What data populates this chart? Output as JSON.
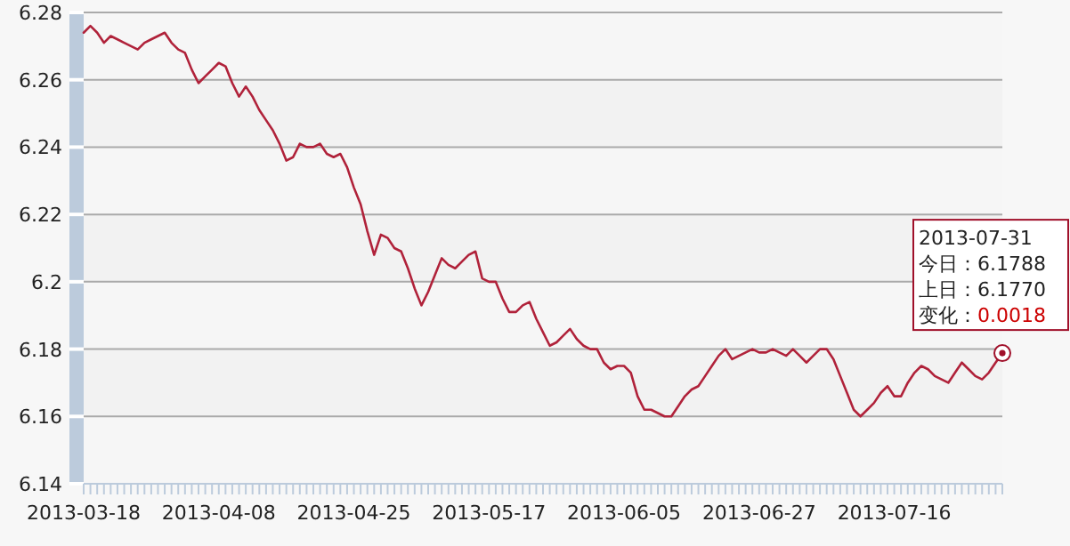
{
  "chart_data": {
    "type": "line",
    "categories": [
      "2013-03-18",
      null,
      null,
      null,
      null,
      null,
      null,
      null,
      null,
      null,
      null,
      null,
      null,
      null,
      null,
      null,
      null,
      null,
      null,
      null,
      "2013-04-08",
      null,
      null,
      null,
      null,
      null,
      null,
      null,
      null,
      null,
      null,
      null,
      null,
      null,
      null,
      null,
      null,
      null,
      null,
      null,
      "2013-04-25",
      null,
      null,
      null,
      null,
      null,
      null,
      null,
      null,
      null,
      null,
      null,
      null,
      null,
      null,
      null,
      null,
      null,
      null,
      null,
      "2013-05-17",
      null,
      null,
      null,
      null,
      null,
      null,
      null,
      null,
      null,
      null,
      null,
      null,
      null,
      null,
      null,
      null,
      null,
      null,
      null,
      "2013-06-05",
      null,
      null,
      null,
      null,
      null,
      null,
      null,
      null,
      null,
      null,
      null,
      null,
      null,
      null,
      null,
      null,
      null,
      null,
      null,
      "2013-06-27",
      null,
      null,
      null,
      null,
      null,
      null,
      null,
      null,
      null,
      null,
      null,
      null,
      null,
      null,
      null,
      null,
      null,
      null,
      null,
      "2013-07-16",
      null,
      null,
      null,
      null,
      null,
      null,
      null,
      null,
      null,
      null,
      null,
      null,
      null,
      null,
      null,
      null
    ],
    "series": [
      {
        "color": "#b0223a",
        "values": [
          6.274,
          6.276,
          6.274,
          6.271,
          6.273,
          6.272,
          6.271,
          6.27,
          6.269,
          6.271,
          6.272,
          6.273,
          6.274,
          6.271,
          6.269,
          6.268,
          6.263,
          6.259,
          6.261,
          6.263,
          6.265,
          6.264,
          6.259,
          6.255,
          6.258,
          6.255,
          6.251,
          6.248,
          6.245,
          6.241,
          6.236,
          6.237,
          6.241,
          6.24,
          6.24,
          6.241,
          6.238,
          6.237,
          6.238,
          6.234,
          6.228,
          6.223,
          6.215,
          6.208,
          6.214,
          6.213,
          6.21,
          6.209,
          6.204,
          6.198,
          6.193,
          6.197,
          6.202,
          6.207,
          6.205,
          6.204,
          6.206,
          6.208,
          6.209,
          6.201,
          6.2,
          6.2,
          6.195,
          6.191,
          6.191,
          6.193,
          6.194,
          6.189,
          6.185,
          6.181,
          6.182,
          6.184,
          6.186,
          6.183,
          6.181,
          6.18,
          6.18,
          6.176,
          6.174,
          6.175,
          6.175,
          6.173,
          6.166,
          6.162,
          6.162,
          6.161,
          6.16,
          6.16,
          6.163,
          6.166,
          6.168,
          6.169,
          6.172,
          6.175,
          6.178,
          6.18,
          6.177,
          6.178,
          6.179,
          6.18,
          6.179,
          6.179,
          6.18,
          6.179,
          6.178,
          6.18,
          6.178,
          6.176,
          6.178,
          6.18,
          6.18,
          6.177,
          6.172,
          6.167,
          6.162,
          6.16,
          6.162,
          6.164,
          6.167,
          6.169,
          6.166,
          6.166,
          6.17,
          6.173,
          6.175,
          6.174,
          6.172,
          6.171,
          6.17,
          6.173,
          6.176,
          6.174,
          6.172,
          6.171,
          6.173,
          6.176,
          6.1788
        ]
      }
    ],
    "ylim": [
      6.14,
      6.28
    ],
    "yticks": [
      6.14,
      6.16,
      6.18,
      6.2,
      6.22,
      6.24,
      6.26,
      6.28
    ],
    "grid": "y",
    "annotations": [
      "2013-07-31",
      "今日：6.1788",
      "上日：6.1770",
      "变化：",
      "0.0018"
    ]
  }
}
